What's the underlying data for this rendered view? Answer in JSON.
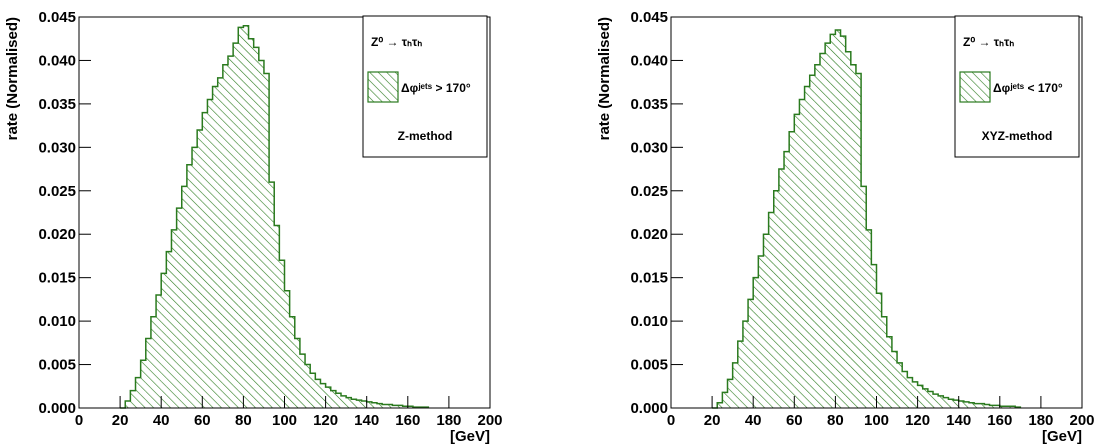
{
  "chart_data": [
    {
      "type": "histogram",
      "xlabel": "[GeV]",
      "ylabel": "rate (Normalised)",
      "legend_title": "Z⁰ → τₕτₕ",
      "annotation": "Z-method",
      "legend_position": "upper right",
      "bins": [
        20,
        22.5,
        25,
        27.5,
        30,
        32.5,
        35,
        37.5,
        40,
        42.5,
        45,
        47.5,
        50,
        52.5,
        55,
        57.5,
        60,
        62.5,
        65,
        67.5,
        70,
        72.5,
        75,
        77.5,
        80,
        82.5,
        85,
        87.5,
        90,
        92.5,
        95,
        97.5,
        100,
        102.5,
        105,
        107.5,
        110,
        112.5,
        115,
        117.5,
        120,
        122.5,
        125,
        127.5,
        130,
        132.5,
        135,
        137.5,
        140,
        142.5,
        145,
        147.5,
        150,
        152.5,
        155,
        157.5,
        160,
        162.5,
        165,
        167.5,
        170
      ],
      "series": [
        {
          "name": "Δφʲᵉᵗˢ > 170°",
          "color": "#2a7a1e",
          "values": [
            0,
            0.0008,
            0.002,
            0.0035,
            0.0055,
            0.008,
            0.0105,
            0.013,
            0.0155,
            0.018,
            0.0205,
            0.023,
            0.0255,
            0.028,
            0.03,
            0.032,
            0.034,
            0.0355,
            0.037,
            0.038,
            0.0395,
            0.0405,
            0.042,
            0.0438,
            0.044,
            0.0425,
            0.0415,
            0.04,
            0.0385,
            0.026,
            0.021,
            0.017,
            0.0135,
            0.0105,
            0.008,
            0.0062,
            0.005,
            0.004,
            0.0033,
            0.0028,
            0.0024,
            0.002,
            0.0017,
            0.0014,
            0.0012,
            0.001,
            0.0009,
            0.0008,
            0.0007,
            0.0006,
            0.0005,
            0.0004,
            0.0004,
            0.0003,
            0.0003,
            0.0002,
            0.0002,
            0.0001,
            0.0001,
            0.0001
          ]
        }
      ],
      "xlim": [
        0,
        200
      ],
      "xticks": [
        0,
        20,
        40,
        60,
        80,
        100,
        120,
        140,
        160,
        180,
        200
      ],
      "ylim": [
        0,
        0.045
      ],
      "yticks": [
        {
          "value": 0,
          "label": "0.000"
        },
        {
          "value": 0.005,
          "label": "0.005"
        },
        {
          "value": 0.01,
          "label": "0.010"
        },
        {
          "value": 0.015,
          "label": "0.015"
        },
        {
          "value": 0.02,
          "label": "0.020"
        },
        {
          "value": 0.025,
          "label": "0.025"
        },
        {
          "value": 0.03,
          "label": "0.030"
        },
        {
          "value": 0.035,
          "label": "0.035"
        },
        {
          "value": 0.04,
          "label": "0.040"
        },
        {
          "value": 0.045,
          "label": "0.045"
        }
      ]
    },
    {
      "type": "histogram",
      "xlabel": "[GeV]",
      "ylabel": "rate (Normalised)",
      "legend_title": "Z⁰ → τₕτₕ",
      "annotation": "XYZ-method",
      "legend_position": "upper right",
      "bins": [
        20,
        22.5,
        25,
        27.5,
        30,
        32.5,
        35,
        37.5,
        40,
        42.5,
        45,
        47.5,
        50,
        52.5,
        55,
        57.5,
        60,
        62.5,
        65,
        67.5,
        70,
        72.5,
        75,
        77.5,
        80,
        82.5,
        85,
        87.5,
        90,
        92.5,
        95,
        97.5,
        100,
        102.5,
        105,
        107.5,
        110,
        112.5,
        115,
        117.5,
        120,
        122.5,
        125,
        127.5,
        130,
        132.5,
        135,
        137.5,
        140,
        142.5,
        145,
        147.5,
        150,
        152.5,
        155,
        157.5,
        160,
        162.5,
        165,
        167.5,
        170
      ],
      "series": [
        {
          "name": "Δφʲᵉᵗˢ < 170°",
          "color": "#2a7a1e",
          "values": [
            0,
            0.0006,
            0.0018,
            0.0033,
            0.0052,
            0.0077,
            0.01,
            0.0125,
            0.015,
            0.0175,
            0.02,
            0.0225,
            0.025,
            0.0275,
            0.0295,
            0.0318,
            0.0338,
            0.0355,
            0.037,
            0.0383,
            0.0395,
            0.0408,
            0.042,
            0.043,
            0.0435,
            0.0428,
            0.041,
            0.0395,
            0.0385,
            0.0255,
            0.0205,
            0.0165,
            0.0132,
            0.0105,
            0.0082,
            0.0065,
            0.0052,
            0.0042,
            0.0035,
            0.003,
            0.0026,
            0.0022,
            0.0019,
            0.0016,
            0.0014,
            0.0012,
            0.001,
            0.0009,
            0.0008,
            0.0007,
            0.0006,
            0.0005,
            0.0005,
            0.0004,
            0.0003,
            0.0003,
            0.0002,
            0.0002,
            0.0002,
            0.0001
          ]
        }
      ],
      "xlim": [
        0,
        200
      ],
      "xticks": [
        0,
        20,
        40,
        60,
        80,
        100,
        120,
        140,
        160,
        180,
        200
      ],
      "ylim": [
        0,
        0.045
      ],
      "yticks": [
        {
          "value": 0,
          "label": "0.000"
        },
        {
          "value": 0.005,
          "label": "0.005"
        },
        {
          "value": 0.01,
          "label": "0.010"
        },
        {
          "value": 0.015,
          "label": "0.015"
        },
        {
          "value": 0.02,
          "label": "0.020"
        },
        {
          "value": 0.025,
          "label": "0.025"
        },
        {
          "value": 0.03,
          "label": "0.030"
        },
        {
          "value": 0.035,
          "label": "0.035"
        },
        {
          "value": 0.04,
          "label": "0.040"
        },
        {
          "value": 0.045,
          "label": "0.045"
        }
      ]
    }
  ]
}
